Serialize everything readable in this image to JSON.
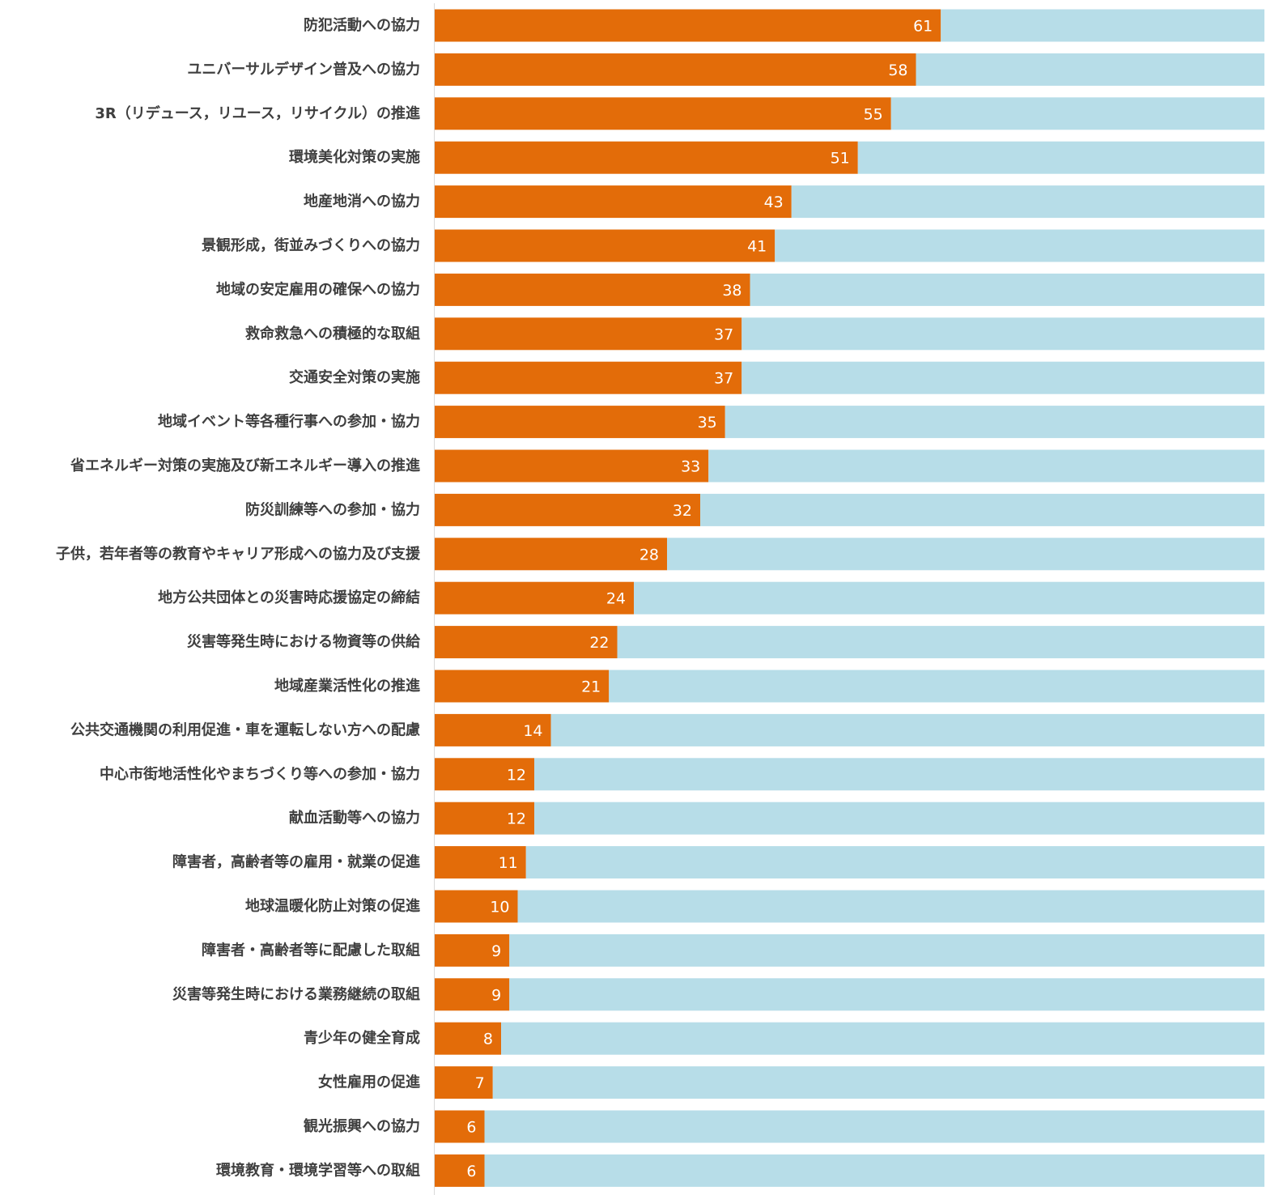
{
  "chart_data": {
    "type": "bar",
    "orientation": "horizontal",
    "stacked": true,
    "xlim": [
      0,
      100
    ],
    "grid": false,
    "legend": "none",
    "colors": {
      "value": "#e36c09",
      "remainder": "#b7dde8",
      "axis": "#d9d9d9"
    },
    "categories": [
      "防犯活動への協力",
      "ユニバーサルデザイン普及への協力",
      "3R（リデュース，リユース，リサイクル）の推進",
      "環境美化対策の実施",
      "地産地消への協力",
      "景観形成，街並みづくりへの協力",
      "地域の安定雇用の確保への協力",
      "救命救急への積極的な取組",
      "交通安全対策の実施",
      "地域イベント等各種行事への参加・協力",
      "省エネルギー対策の実施及び新エネルギー導入の推進",
      "防災訓練等への参加・協力",
      "子供，若年者等の教育やキャリア形成への協力及び支援",
      "地方公共団体との災害時応援協定の締結",
      "災害等発生時における物資等の供給",
      "地域産業活性化の推進",
      "公共交通機関の利用促進・車を運転しない方への配慮",
      "中心市街地活性化やまちづくり等への参加・協力",
      "献血活動等への協力",
      "障害者，高齢者等の雇用・就業の促進",
      "地球温暖化防止対策の促進",
      "障害者・高齢者等に配慮した取組",
      "災害等発生時における業務継続の取組",
      "青少年の健全育成",
      "女性雇用の促進",
      "観光振興への協力",
      "環境教育・環境学習等への取組"
    ],
    "series": [
      {
        "values": [
          61,
          58,
          55,
          51,
          43,
          41,
          38,
          37,
          37,
          35,
          33,
          32,
          28,
          24,
          22,
          21,
          14,
          12,
          12,
          11,
          10,
          9,
          9,
          8,
          7,
          6,
          6
        ]
      },
      {
        "values": [
          39,
          42,
          45,
          49,
          57,
          59,
          62,
          63,
          63,
          65,
          67,
          68,
          72,
          76,
          78,
          79,
          86,
          88,
          88,
          89,
          90,
          91,
          91,
          92,
          93,
          94,
          94
        ]
      }
    ]
  }
}
